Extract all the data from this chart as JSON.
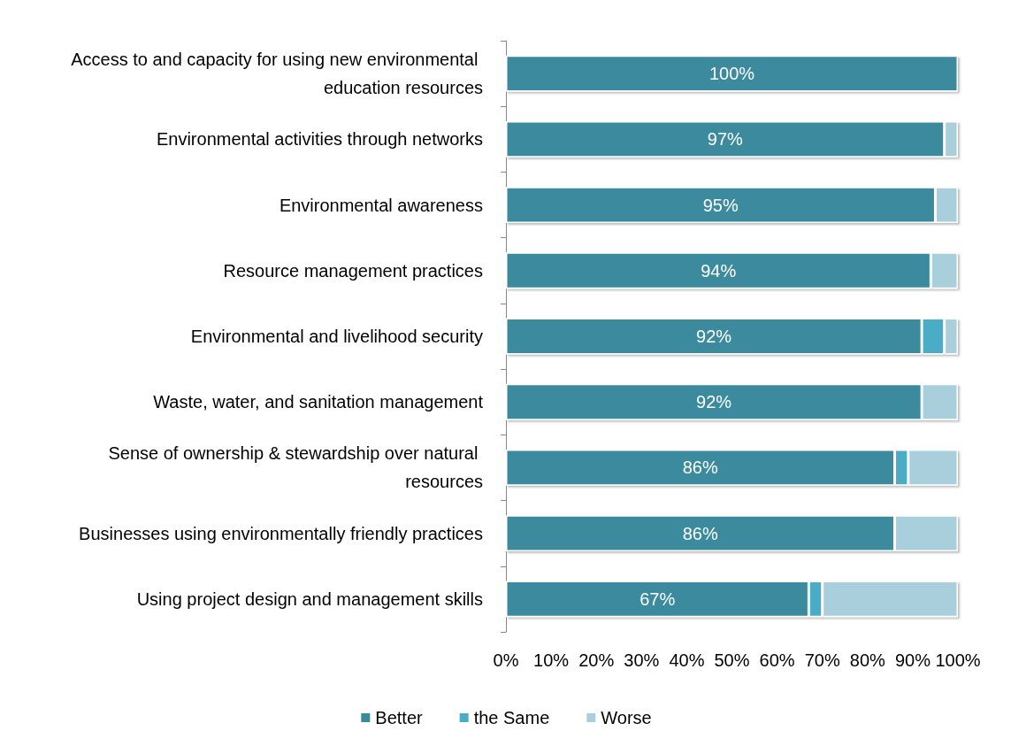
{
  "chart_data": {
    "type": "bar",
    "orientation": "horizontal",
    "stacked": true,
    "categories": [
      "Access to and capacity for using new environmental education resources",
      "Environmental activities through networks",
      "Environmental awareness",
      "Resource management practices",
      "Environmental and livelihood security",
      "Waste, water, and sanitation management",
      "Sense of ownership & stewardship over natural resources",
      "Businesses using environmentally friendly practices",
      "Using project design and management skills"
    ],
    "series": [
      {
        "name": "Better",
        "color": "#3a8a9e",
        "values": [
          100,
          97,
          95,
          94,
          92,
          92,
          86,
          86,
          67
        ],
        "value_labels": [
          "100%",
          "97%",
          "95%",
          "94%",
          "92%",
          "92%",
          "86%",
          "86%",
          "67%"
        ]
      },
      {
        "name": "the Same",
        "color": "#4bacc6",
        "values": [
          null,
          null,
          null,
          null,
          5,
          null,
          3,
          null,
          3
        ]
      },
      {
        "name": "Worse",
        "color": "#a9cfdc",
        "values": [
          null,
          3,
          5,
          6,
          3,
          8,
          11,
          14,
          30
        ]
      }
    ],
    "xlim": [
      0,
      100
    ],
    "xticks": [
      {
        "value": 0,
        "label": "0%"
      },
      {
        "value": 10,
        "label": "10%"
      },
      {
        "value": 20,
        "label": "20%"
      },
      {
        "value": 30,
        "label": "30%"
      },
      {
        "value": 40,
        "label": "40%"
      },
      {
        "value": 50,
        "label": "50%"
      },
      {
        "value": 60,
        "label": "60%"
      },
      {
        "value": 70,
        "label": "70%"
      },
      {
        "value": 80,
        "label": "80%"
      },
      {
        "value": 90,
        "label": "90%"
      },
      {
        "value": 100,
        "label": "100%"
      }
    ],
    "grid": false,
    "legend": "bottom"
  }
}
